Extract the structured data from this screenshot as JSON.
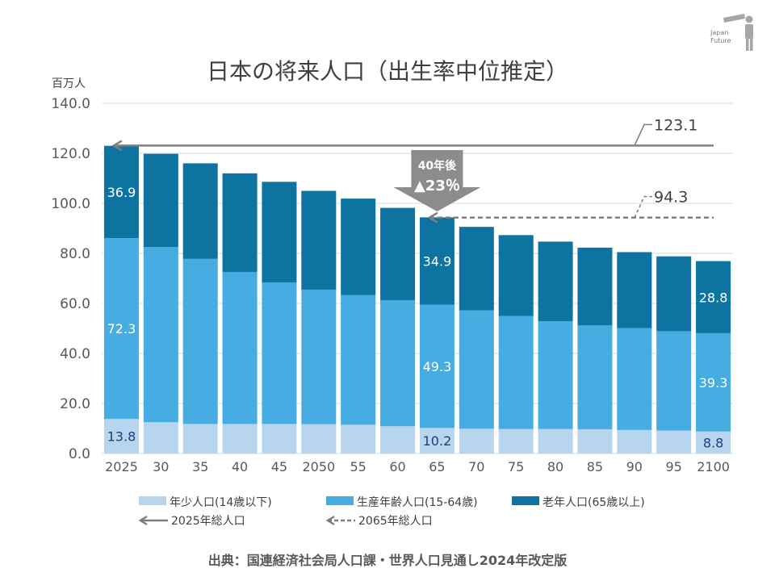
{
  "logo": {
    "line1": "Japan",
    "line2": "Future"
  },
  "colors": {
    "young": "#b7d5ef",
    "working": "#45ade2",
    "elderly": "#0d74a2",
    "ref_line": "#7f7f7f",
    "grid": "#d9d9d9",
    "axis_text": "#595959",
    "badge": "#8c8c8c"
  },
  "chart_data": {
    "type": "bar",
    "stacked": true,
    "title": "日本の将来人口（出生率中位推定）",
    "ylabel": "百万人",
    "ylim": [
      0,
      140
    ],
    "yticks": [
      "0.0",
      "20.0",
      "40.0",
      "60.0",
      "80.0",
      "100.0",
      "120.0",
      "140.0"
    ],
    "grid": true,
    "legend_position": "bottom",
    "categories": [
      "2025",
      "30",
      "35",
      "40",
      "45",
      "2050",
      "55",
      "60",
      "65",
      "70",
      "75",
      "80",
      "85",
      "90",
      "95",
      "2100"
    ],
    "series": [
      {
        "name": "年少人口(14歳以下)",
        "color": "#b7d5ef",
        "values": [
          13.8,
          12.5,
          11.8,
          11.8,
          11.8,
          11.7,
          11.5,
          10.9,
          10.2,
          9.9,
          9.8,
          9.8,
          9.7,
          9.4,
          9.2,
          8.8
        ]
      },
      {
        "name": "生産年齢人口(15-64歳)",
        "color": "#45ade2",
        "values": [
          72.3,
          70.0,
          66.0,
          60.7,
          56.6,
          53.8,
          51.8,
          50.4,
          49.3,
          47.3,
          45.2,
          43.1,
          41.5,
          40.7,
          39.7,
          39.3
        ]
      },
      {
        "name": "老年人口(65歳以上)",
        "color": "#0d74a2",
        "values": [
          36.9,
          37.3,
          38.2,
          39.5,
          40.2,
          39.5,
          38.6,
          36.9,
          34.9,
          33.4,
          32.3,
          31.8,
          31.1,
          30.4,
          29.9,
          28.8
        ]
      }
    ],
    "data_labels": [
      {
        "category": "2025",
        "series": 0,
        "text": "13.8"
      },
      {
        "category": "2025",
        "series": 1,
        "text": "72.3"
      },
      {
        "category": "2025",
        "series": 2,
        "text": "36.9"
      },
      {
        "category": "65",
        "series": 0,
        "text": "10.2"
      },
      {
        "category": "65",
        "series": 1,
        "text": "49.3"
      },
      {
        "category": "65",
        "series": 2,
        "text": "34.9"
      },
      {
        "category": "2100",
        "series": 0,
        "text": "8.8"
      },
      {
        "category": "2100",
        "series": 1,
        "text": "39.3"
      },
      {
        "category": "2100",
        "series": 2,
        "text": "28.8"
      }
    ],
    "reference_lines": [
      {
        "name": "2025年総人口",
        "value": 123.1,
        "label": "123.1",
        "style": "solid",
        "from_category": "2025"
      },
      {
        "name": "2065年総人口",
        "value": 94.3,
        "label": "94.3",
        "style": "dashed",
        "from_category": "65"
      }
    ],
    "annotation": {
      "line1": "40年後",
      "line2": "▲23％",
      "category": "65"
    },
    "legend": [
      {
        "text": "年少人口(14歳以下)",
        "kind": "swatch",
        "color": "#b7d5ef"
      },
      {
        "text": "生産年齢人口(15-64歳)",
        "kind": "swatch",
        "color": "#45ade2"
      },
      {
        "text": "老年人口(65歳以上)",
        "kind": "swatch",
        "color": "#0d74a2"
      },
      {
        "text": "2025年総人口",
        "kind": "solid-arrow"
      },
      {
        "text": "2065年総人口",
        "kind": "dashed-arrow"
      }
    ],
    "source": "出典：国連経済社会局人口課・世界人口見通し2024年改定版"
  }
}
